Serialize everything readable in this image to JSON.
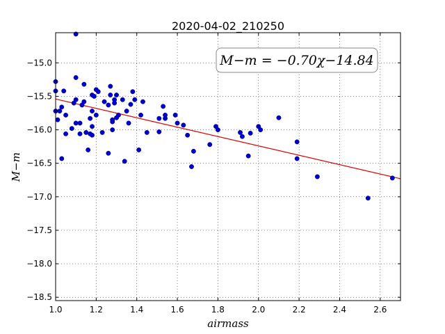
{
  "chart_data": {
    "type": "scatter",
    "title": "2020-04-02_210250",
    "xlabel": "airmass",
    "ylabel": "M−m",
    "xlim": [
      1.0,
      2.7
    ],
    "ylim": [
      -18.55,
      -14.55
    ],
    "y_inverted": true,
    "grid": true,
    "xticks": [
      1.0,
      1.2,
      1.4,
      1.6,
      1.8,
      2.0,
      2.2,
      2.4,
      2.6
    ],
    "xtick_labels": [
      "1.0",
      "1.2",
      "1.4",
      "1.6",
      "1.8",
      "2.0",
      "2.2",
      "2.4",
      "2.6"
    ],
    "yticks": [
      -15.0,
      -15.5,
      -16.0,
      -16.5,
      -17.0,
      -17.5,
      -18.0,
      -18.5
    ],
    "ytick_labels": [
      "−15.0",
      "−15.5",
      "−16.0",
      "−16.5",
      "−17.0",
      "−17.5",
      "−18.0",
      "−18.5"
    ],
    "annotation": "M−m = −0.70χ−14.84",
    "fit": {
      "slope": -0.7,
      "intercept": -14.84,
      "color": "#dd0000"
    },
    "point_color": "#0000cc",
    "points": [
      [
        1.0,
        -15.28
      ],
      [
        1.0,
        -15.42
      ],
      [
        1.0,
        -15.72
      ],
      [
        1.01,
        -15.85
      ],
      [
        1.02,
        -15.72
      ],
      [
        1.03,
        -15.66
      ],
      [
        1.03,
        -16.43
      ],
      [
        1.04,
        -15.42
      ],
      [
        1.05,
        -15.78
      ],
      [
        1.05,
        -16.06
      ],
      [
        1.08,
        -15.98
      ],
      [
        1.09,
        -15.6
      ],
      [
        1.1,
        -15.55
      ],
      [
        1.1,
        -15.9
      ],
      [
        1.1,
        -15.22
      ],
      [
        1.1,
        -14.57
      ],
      [
        1.12,
        -15.9
      ],
      [
        1.12,
        -16.06
      ],
      [
        1.13,
        -15.63
      ],
      [
        1.14,
        -15.58
      ],
      [
        1.14,
        -15.32
      ],
      [
        1.15,
        -16.04
      ],
      [
        1.16,
        -16.3
      ],
      [
        1.17,
        -16.06
      ],
      [
        1.17,
        -15.83
      ],
      [
        1.18,
        -15.48
      ],
      [
        1.18,
        -15.72
      ],
      [
        1.18,
        -15.95
      ],
      [
        1.18,
        -16.08
      ],
      [
        1.19,
        -15.5
      ],
      [
        1.2,
        -15.78
      ],
      [
        1.2,
        -15.4
      ],
      [
        1.21,
        -15.43
      ],
      [
        1.23,
        -16.04
      ],
      [
        1.24,
        -15.58
      ],
      [
        1.26,
        -16.35
      ],
      [
        1.26,
        -15.63
      ],
      [
        1.27,
        -15.35
      ],
      [
        1.27,
        -15.48
      ],
      [
        1.28,
        -15.85
      ],
      [
        1.28,
        -15.88
      ],
      [
        1.28,
        -16.0
      ],
      [
        1.29,
        -15.6
      ],
      [
        1.29,
        -15.55
      ],
      [
        1.3,
        -15.48
      ],
      [
        1.3,
        -15.82
      ],
      [
        1.31,
        -15.78
      ],
      [
        1.33,
        -15.55
      ],
      [
        1.34,
        -16.47
      ],
      [
        1.35,
        -15.72
      ],
      [
        1.36,
        -15.9
      ],
      [
        1.37,
        -15.62
      ],
      [
        1.38,
        -15.43
      ],
      [
        1.39,
        -15.55
      ],
      [
        1.41,
        -16.3
      ],
      [
        1.42,
        -15.78
      ],
      [
        1.43,
        -15.58
      ],
      [
        1.45,
        -16.04
      ],
      [
        1.51,
        -16.03
      ],
      [
        1.51,
        -15.83
      ],
      [
        1.53,
        -15.65
      ],
      [
        1.54,
        -15.78
      ],
      [
        1.54,
        -15.83
      ],
      [
        1.59,
        -15.78
      ],
      [
        1.6,
        -15.9
      ],
      [
        1.63,
        -15.93
      ],
      [
        1.65,
        -16.08
      ],
      [
        1.67,
        -16.55
      ],
      [
        1.68,
        -16.32
      ],
      [
        1.76,
        -16.22
      ],
      [
        1.79,
        -15.95
      ],
      [
        1.8,
        -16.0
      ],
      [
        1.91,
        -16.04
      ],
      [
        1.92,
        -16.1
      ],
      [
        1.95,
        -16.39
      ],
      [
        1.96,
        -16.05
      ],
      [
        2.0,
        -15.95
      ],
      [
        2.01,
        -16.0
      ],
      [
        2.1,
        -15.82
      ],
      [
        2.19,
        -16.18
      ],
      [
        2.19,
        -16.43
      ],
      [
        2.29,
        -16.7
      ],
      [
        2.54,
        -17.02
      ],
      [
        2.66,
        -16.72
      ]
    ]
  }
}
